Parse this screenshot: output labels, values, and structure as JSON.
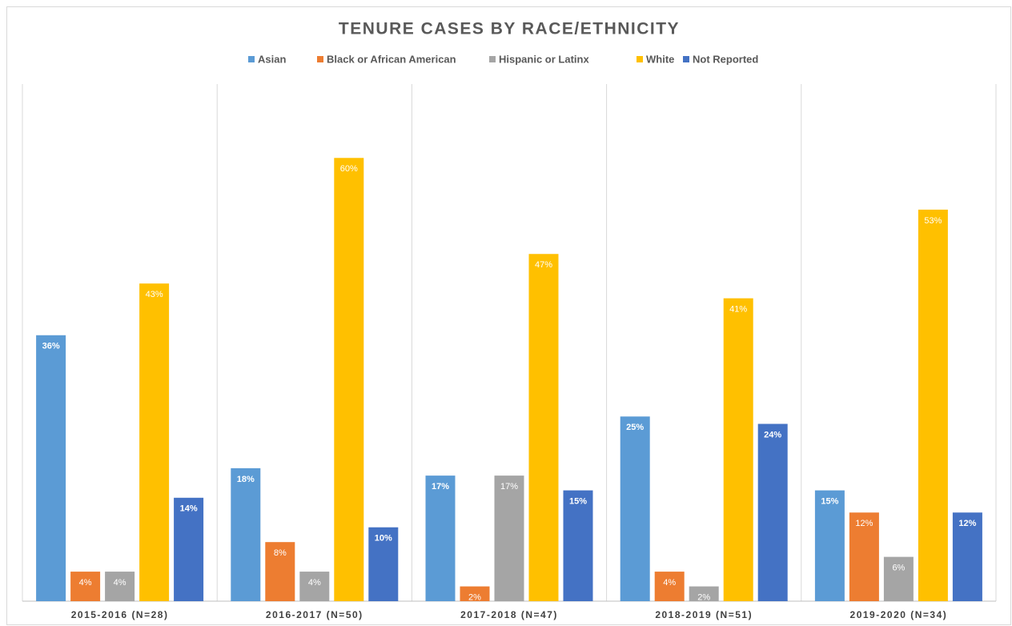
{
  "chart_data": {
    "type": "bar",
    "title": "TENURE CASES BY RACE/ETHNICITY",
    "categories": [
      "2015-2016 (N=28)",
      "2016-2017 (N=50)",
      "2017-2018 (N=47)",
      "2018-2019 (N=51)",
      "2019-2020 (N=34)"
    ],
    "series": [
      {
        "name": "Asian",
        "color": "#5b9bd5",
        "values": [
          36,
          18,
          17,
          25,
          15
        ],
        "value_labels": [
          "36%",
          "18%",
          "17%",
          "25%",
          "15%"
        ]
      },
      {
        "name": "Black or African American",
        "color": "#ed7d31",
        "values": [
          4,
          8,
          2,
          4,
          12
        ],
        "value_labels": [
          "4%",
          "8%",
          "2%",
          "4%",
          "12%"
        ]
      },
      {
        "name": "Hispanic or Latinx",
        "color": "#a5a5a5",
        "values": [
          4,
          4,
          17,
          2,
          6
        ],
        "value_labels": [
          "4%",
          "4%",
          "17%",
          "2%",
          "6%"
        ]
      },
      {
        "name": "White",
        "color": "#ffc000",
        "values": [
          43,
          60,
          47,
          41,
          53
        ],
        "value_labels": [
          "43%",
          "60%",
          "47%",
          "41%",
          "53%"
        ]
      },
      {
        "name": "Not Reported",
        "color": "#4472c4",
        "values": [
          14,
          10,
          15,
          24,
          12
        ],
        "value_labels": [
          "14%",
          "10%",
          "15%",
          "24%",
          "12%"
        ]
      }
    ],
    "ylim": [
      0,
      70
    ],
    "legend": "top"
  }
}
